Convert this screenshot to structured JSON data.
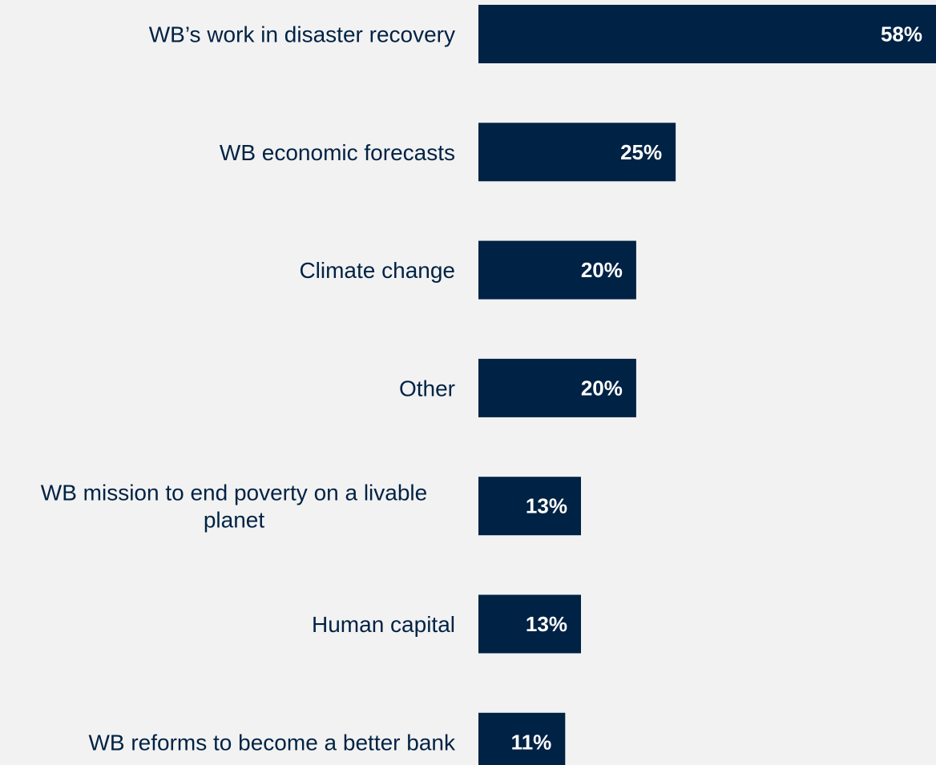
{
  "chart_data": {
    "type": "bar",
    "orientation": "horizontal",
    "categories": [
      "WB’s work in disaster recovery",
      "WB economic forecasts",
      "Climate change",
      "Other",
      "WB mission to end poverty on a livable planet",
      "Human capital",
      "WB reforms to become a better bank"
    ],
    "values": [
      58,
      25,
      20,
      20,
      13,
      13,
      11
    ],
    "value_labels": [
      "58%",
      "25%",
      "20%",
      "20%",
      "13%",
      "13%",
      "11%"
    ],
    "unit": "%",
    "xlim": [
      0,
      58
    ],
    "grid": false,
    "legend": "none",
    "colors": {
      "bar": "#002244",
      "background": "#f2f2f2",
      "label": "#002244",
      "value_label": "#ffffff"
    }
  }
}
